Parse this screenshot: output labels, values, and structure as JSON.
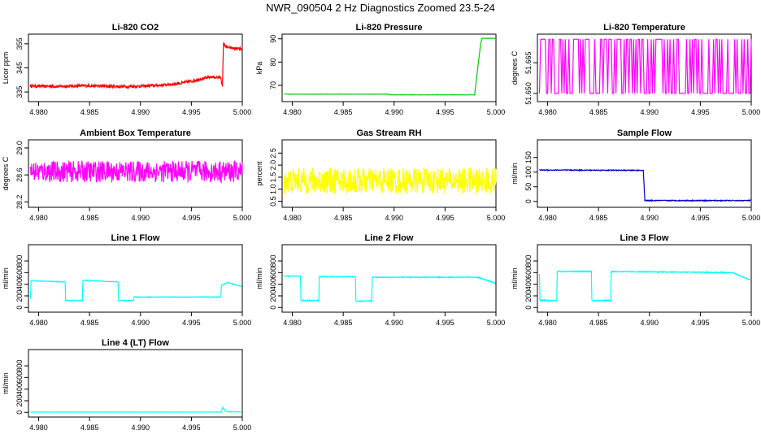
{
  "figure_title": "NWR_090504  2 Hz Diagnostics Zoomed 23.5-24",
  "chart_data": [
    {
      "type": "line",
      "title": "Li-820 CO2",
      "ylabel": "Licor ppm",
      "color": "#ff0000",
      "xlim": [
        4.979,
        5.0
      ],
      "ylim": [
        331,
        359
      ],
      "xticks": [
        "4.980",
        "4.985",
        "4.990",
        "4.995",
        "5.000"
      ],
      "yticks": [
        {
          "v": 335,
          "label": "335"
        },
        {
          "v": 345,
          "label": "345"
        },
        {
          "v": 355,
          "label": "355"
        }
      ],
      "series": [
        {
          "x": [
            4.9792,
            4.982,
            4.985,
            4.988,
            4.99,
            4.992,
            4.994,
            4.995,
            4.996,
            4.997,
            4.9979,
            4.99805,
            4.99815,
            4.9985,
            4.999,
            4.9999
          ],
          "y": [
            337.5,
            337.3,
            337.6,
            337.2,
            337.4,
            337.8,
            338.6,
            339.5,
            340.5,
            341.2,
            341.0,
            337.0,
            355.0,
            353.5,
            353.2,
            352.8
          ],
          "noise": 0.6
        }
      ]
    },
    {
      "type": "line",
      "title": "Li-820 Pressure",
      "ylabel": "kPa",
      "color": "#00cc00",
      "xlim": [
        4.979,
        5.0
      ],
      "ylim": [
        63,
        92
      ],
      "xticks": [
        "4.980",
        "4.985",
        "4.990",
        "4.995",
        "5.000"
      ],
      "yticks": [
        {
          "v": 70,
          "label": "70"
        },
        {
          "v": 80,
          "label": "80"
        },
        {
          "v": 90,
          "label": "90"
        }
      ],
      "series": [
        {
          "x": [
            4.9792,
            4.9895,
            4.98955,
            4.9979,
            4.9985,
            4.99865,
            5.0
          ],
          "y": [
            66.2,
            66.2,
            65.9,
            65.9,
            88.0,
            90.2,
            90.2
          ],
          "noise": 0.05
        }
      ]
    },
    {
      "type": "line",
      "title": "Li-820 Temperature",
      "ylabel": "degrees C",
      "color": "#ff00ff",
      "xlim": [
        4.979,
        5.0
      ],
      "ylim": [
        51.646,
        51.679
      ],
      "xticks": [
        "4.980",
        "4.985",
        "4.990",
        "4.995",
        "5.000"
      ],
      "yticks": [
        {
          "v": 51.65,
          "label": "51.650"
        },
        {
          "v": 51.665,
          "label": "51.665"
        }
      ],
      "series": [
        {
          "x": [
            4.9792,
            5.0
          ],
          "y": [
            51.65,
            51.6765
          ],
          "style": "binary-toggle"
        }
      ]
    },
    {
      "type": "line",
      "title": "Ambient Box Temperature",
      "ylabel": "degrees C",
      "color": "#ff00ff",
      "xlim": [
        4.979,
        5.0
      ],
      "ylim": [
        28.12,
        29.12
      ],
      "xticks": [
        "4.980",
        "4.985",
        "4.990",
        "4.995",
        "5.000"
      ],
      "yticks": [
        {
          "v": 28.2,
          "label": "28.2"
        },
        {
          "v": 28.6,
          "label": "28.6"
        },
        {
          "v": 29.0,
          "label": "29.0"
        }
      ],
      "series": [
        {
          "x": [
            4.9792,
            5.0
          ],
          "y": [
            28.65,
            28.65
          ],
          "noise": 0.16
        }
      ]
    },
    {
      "type": "line",
      "title": "Gas Stream RH",
      "ylabel": "percent",
      "color": "#ffff00",
      "xlim": [
        4.979,
        5.0
      ],
      "ylim": [
        0.25,
        3.05
      ],
      "xticks": [
        "4.980",
        "4.985",
        "4.990",
        "4.995",
        "5.000"
      ],
      "yticks": [
        {
          "v": 0.5,
          "label": "0.5"
        },
        {
          "v": 1.0,
          "label": "1.0"
        },
        {
          "v": 1.5,
          "label": "1.5"
        },
        {
          "v": 2.0,
          "label": "2.0"
        },
        {
          "v": 2.5,
          "label": "2.5"
        }
      ],
      "series": [
        {
          "x": [
            4.9792,
            5.0
          ],
          "y": [
            1.35,
            1.35
          ],
          "noise": 0.55
        }
      ]
    },
    {
      "type": "line",
      "title": "Sample Flow",
      "ylabel": "ml/min",
      "color": "#0000cc",
      "xlim": [
        4.979,
        5.0
      ],
      "ylim": [
        -20,
        210
      ],
      "xticks": [
        "4.980",
        "4.985",
        "4.990",
        "4.995",
        "5.000"
      ],
      "yticks": [
        {
          "v": 0,
          "label": "0"
        },
        {
          "v": 50,
          "label": "50"
        },
        {
          "v": 100,
          "label": "100"
        },
        {
          "v": 150,
          "label": "150"
        }
      ],
      "series": [
        {
          "x": [
            4.9792,
            4.9894,
            4.98955,
            4.9999
          ],
          "y": [
            107,
            106,
            3,
            3
          ],
          "noise": 1.5
        }
      ]
    },
    {
      "type": "line",
      "title": "Line 1 Flow",
      "ylabel": "ml/min",
      "color": "#00ffff",
      "xlim": [
        4.979,
        5.0
      ],
      "ylim": [
        -80,
        1080
      ],
      "xticks": [
        "4.980",
        "4.985",
        "4.990",
        "4.995",
        "5.000"
      ],
      "yticks": [
        {
          "v": 0,
          "label": "0"
        },
        {
          "v": 200,
          "label": "200"
        },
        {
          "v": 400,
          "label": "400"
        },
        {
          "v": 600,
          "label": "600"
        },
        {
          "v": 800,
          "label": "800"
        }
      ],
      "series": [
        {
          "x": [
            4.9792,
            4.97925,
            4.9826,
            4.98265,
            4.9843,
            4.98435,
            4.9878,
            4.98785,
            4.9893,
            4.98935,
            4.9979,
            4.99795,
            4.9986,
            4.9999
          ],
          "y": [
            150,
            460,
            440,
            120,
            120,
            470,
            440,
            120,
            120,
            180,
            180,
            380,
            430,
            360
          ],
          "noise": 6
        }
      ]
    },
    {
      "type": "line",
      "title": "Line 2 Flow",
      "ylabel": "ml/min",
      "color": "#00ffff",
      "xlim": [
        4.979,
        5.0
      ],
      "ylim": [
        -80,
        1080
      ],
      "xticks": [
        "4.980",
        "4.985",
        "4.990",
        "4.995",
        "5.000"
      ],
      "yticks": [
        {
          "v": 0,
          "label": "0"
        },
        {
          "v": 200,
          "label": "200"
        },
        {
          "v": 400,
          "label": "400"
        },
        {
          "v": 600,
          "label": "600"
        },
        {
          "v": 800,
          "label": "800"
        }
      ],
      "series": [
        {
          "x": [
            4.9792,
            4.9808,
            4.98085,
            4.9826,
            4.98265,
            4.9862,
            4.98625,
            4.9878,
            4.98785,
            4.9982,
            4.9999
          ],
          "y": [
            540,
            540,
            120,
            120,
            530,
            530,
            110,
            110,
            520,
            520,
            420
          ],
          "noise": 8
        }
      ]
    },
    {
      "type": "line",
      "title": "Line 3 Flow",
      "ylabel": "ml/min",
      "color": "#00ffff",
      "xlim": [
        4.979,
        5.0
      ],
      "ylim": [
        -80,
        1080
      ],
      "xticks": [
        "4.980",
        "4.985",
        "4.990",
        "4.995",
        "5.000"
      ],
      "yticks": [
        {
          "v": 0,
          "label": "0"
        },
        {
          "v": 200,
          "label": "200"
        },
        {
          "v": 400,
          "label": "400"
        },
        {
          "v": 600,
          "label": "600"
        },
        {
          "v": 800,
          "label": "800"
        }
      ],
      "series": [
        {
          "x": [
            4.9792,
            4.97925,
            4.9809,
            4.98095,
            4.9843,
            4.98435,
            4.9862,
            4.98625,
            4.9982,
            4.9999
          ],
          "y": [
            570,
            120,
            120,
            620,
            620,
            120,
            120,
            620,
            600,
            470
          ],
          "noise": 9
        }
      ]
    },
    {
      "type": "line",
      "title": "Line 4 (LT) Flow",
      "ylabel": "ml/min",
      "color": "#00ffff",
      "xlim": [
        4.979,
        5.0
      ],
      "ylim": [
        -80,
        1080
      ],
      "xticks": [
        "4.980",
        "4.985",
        "4.990",
        "4.995",
        "5.000"
      ],
      "yticks": [
        {
          "v": 0,
          "label": "0"
        },
        {
          "v": 200,
          "label": "200"
        },
        {
          "v": 400,
          "label": "400"
        },
        {
          "v": 600,
          "label": "600"
        },
        {
          "v": 800,
          "label": "800"
        }
      ],
      "series": [
        {
          "x": [
            4.9792,
            4.9979,
            4.9981,
            4.9983,
            4.9986,
            4.9999
          ],
          "y": [
            5,
            5,
            90,
            30,
            10,
            10
          ],
          "noise": 1.5
        }
      ]
    }
  ]
}
